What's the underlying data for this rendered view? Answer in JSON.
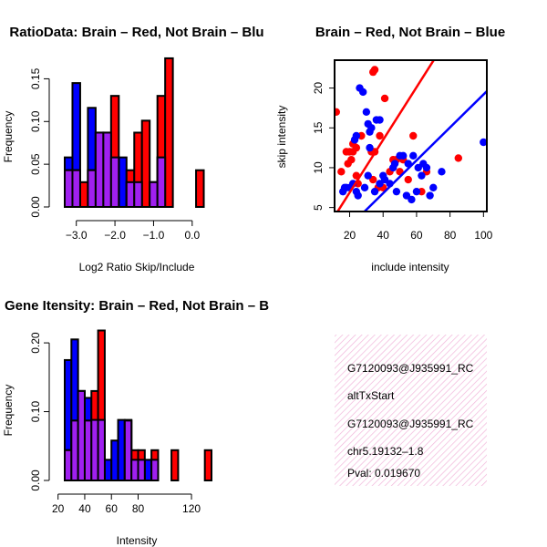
{
  "colors": {
    "red": "#ff0000",
    "blue": "#0000ff",
    "overlap": "#a020f0",
    "info_bg": "#f7d6ec",
    "pval": "#8b0000"
  },
  "chart_data": [
    {
      "type": "bar",
      "title": "RatioData: Brain – Red, Not Brain – Blu",
      "xlabel": "Log2 Ratio Skip/Include",
      "ylabel": "Frequency",
      "xlim": [
        -3.3,
        0.5
      ],
      "ylim": [
        0,
        0.175
      ],
      "xticks": [
        -3.0,
        -2.0,
        -1.0,
        0.0
      ],
      "xtick_labels": [
        "−3.0",
        "−2.0",
        "−1.0",
        "0.0"
      ],
      "yticks": [
        0.0,
        0.05,
        0.1,
        0.15
      ],
      "ytick_labels": [
        "0.00",
        "0.05",
        "0.10",
        "0.15"
      ],
      "bin_width": 0.2,
      "series": [
        {
          "name": "Not Brain",
          "color": "blue",
          "bins": [
            [
              -3.3,
              0.058
            ],
            [
              -3.1,
              0.145
            ],
            [
              -2.9,
              0.0
            ],
            [
              -2.7,
              0.116
            ],
            [
              -2.5,
              0.087
            ],
            [
              -2.3,
              0.087
            ],
            [
              -2.1,
              0.058
            ],
            [
              -1.9,
              0.058
            ],
            [
              -1.7,
              0.029
            ],
            [
              -1.5,
              0.029
            ],
            [
              -1.3,
              0.0
            ],
            [
              -1.1,
              0.029
            ],
            [
              -0.9,
              0.058
            ]
          ]
        },
        {
          "name": "Brain",
          "color": "red",
          "bins": [
            [
              -3.3,
              0.043
            ],
            [
              -3.1,
              0.043
            ],
            [
              -2.9,
              0.029
            ],
            [
              -2.7,
              0.043
            ],
            [
              -2.5,
              0.087
            ],
            [
              -2.3,
              0.087
            ],
            [
              -2.1,
              0.13
            ],
            [
              -1.7,
              0.043
            ],
            [
              -1.5,
              0.087
            ],
            [
              -1.3,
              0.101
            ],
            [
              -1.1,
              0.029
            ],
            [
              -0.9,
              0.13
            ],
            [
              -0.7,
              0.174
            ],
            [
              0.1,
              0.043
            ]
          ]
        }
      ]
    },
    {
      "type": "scatter",
      "title": "Brain – Red, Not Brain – Blue",
      "xlabel": "include intensity",
      "ylabel": "skip intensity",
      "xlim": [
        11,
        102
      ],
      "ylim": [
        4.5,
        23.5
      ],
      "xticks": [
        20,
        40,
        60,
        80,
        100
      ],
      "yticks": [
        5,
        10,
        15,
        20
      ],
      "series": [
        {
          "name": "Brain",
          "color": "red",
          "x": [
            12,
            15,
            18,
            19,
            20,
            21,
            22,
            22,
            24,
            24,
            25,
            27,
            33,
            34,
            34,
            35,
            35,
            37,
            38,
            40,
            41,
            44,
            46,
            48,
            50,
            52,
            55,
            58,
            63,
            66,
            85
          ],
          "y": [
            17,
            9.5,
            12,
            10.5,
            12,
            11,
            12,
            13,
            12.5,
            9,
            8,
            14,
            12,
            8.5,
            22,
            22.3,
            12,
            7.5,
            14,
            7.5,
            18.7,
            9.5,
            11,
            11,
            9.5,
            11,
            8.5,
            14,
            7,
            9.5,
            11.2
          ]
        },
        {
          "name": "Not Brain",
          "color": "blue",
          "x": [
            16,
            17,
            18,
            20,
            22,
            23,
            24,
            24,
            25,
            26,
            28,
            29,
            30,
            31,
            31,
            32,
            32,
            33,
            35,
            36,
            38,
            38,
            40,
            41,
            44,
            46,
            47,
            48,
            50,
            52,
            54,
            55,
            57,
            58,
            60,
            61,
            63,
            64,
            66,
            68,
            70,
            75,
            100
          ],
          "y": [
            7,
            7.5,
            7.5,
            7.5,
            8,
            13.5,
            14,
            7,
            6.5,
            20,
            19.5,
            7.5,
            17,
            15.5,
            9,
            12.5,
            14.5,
            15,
            7,
            16,
            16,
            8,
            9,
            8.5,
            8,
            10,
            10.5,
            7,
            11.5,
            11.5,
            6.5,
            10.5,
            6,
            11.5,
            7,
            10,
            9,
            10.5,
            10,
            6.5,
            7.5,
            9.5,
            13.2
          ]
        }
      ],
      "fit_lines": [
        {
          "name": "Brain fit",
          "color": "red",
          "x": [
            11,
            102
          ],
          "y": [
            3.9,
            34.0
          ]
        },
        {
          "name": "Not Brain fit",
          "color": "blue",
          "x": [
            11,
            102
          ],
          "y": [
            0.8,
            19.6
          ]
        }
      ]
    },
    {
      "type": "bar",
      "title": "Gene Itensity: Brain – Red, Not Brain – B",
      "xlabel": "Intensity",
      "ylabel": "Frequency",
      "xlim": [
        25,
        135
      ],
      "ylim": [
        0,
        0.22
      ],
      "xticks": [
        20,
        40,
        60,
        80,
        120
      ],
      "xtick_labels": [
        "20",
        "40",
        "60",
        "80",
        "120"
      ],
      "yticks": [
        0.0,
        0.1,
        0.2
      ],
      "ytick_labels": [
        "0.00",
        "0.10",
        "0.20"
      ],
      "bin_width": 5,
      "series": [
        {
          "name": "Not Brain",
          "color": "blue",
          "bins": [
            [
              25,
              0.175
            ],
            [
              30,
              0.205
            ],
            [
              35,
              0.13
            ],
            [
              40,
              0.12
            ],
            [
              45,
              0.088
            ],
            [
              50,
              0.088
            ],
            [
              55,
              0.03
            ],
            [
              60,
              0.058
            ],
            [
              65,
              0.088
            ],
            [
              70,
              0.088
            ],
            [
              75,
              0.03
            ],
            [
              80,
              0.03
            ],
            [
              85,
              0.03
            ],
            [
              90,
              0.03
            ]
          ]
        },
        {
          "name": "Brain",
          "color": "red",
          "bins": [
            [
              25,
              0.044
            ],
            [
              30,
              0.087
            ],
            [
              35,
              0.13
            ],
            [
              40,
              0.087
            ],
            [
              45,
              0.13
            ],
            [
              50,
              0.218
            ],
            [
              55,
              0.0
            ],
            [
              60,
              0.0
            ],
            [
              65,
              0.0
            ],
            [
              70,
              0.087
            ],
            [
              75,
              0.044
            ],
            [
              80,
              0.044
            ],
            [
              85,
              0.0
            ],
            [
              90,
              0.044
            ],
            [
              105,
              0.044
            ],
            [
              130,
              0.044
            ]
          ]
        }
      ]
    }
  ],
  "info": {
    "line1": "G7120093@J935991_RC",
    "line2": "altTxStart",
    "line3": "G7120093@J935991_RC",
    "line4": "chr5.19132–1.8",
    "pval": "Pval: 0.019670"
  }
}
